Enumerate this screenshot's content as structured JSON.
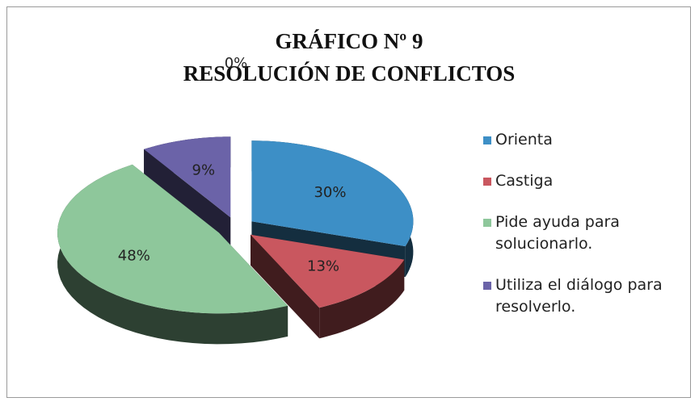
{
  "chart_data": {
    "type": "pie3d",
    "title": [
      "GRÁFICO Nº 9",
      "RESOLUCIÓN DE CONFLICTOS"
    ],
    "categories": [
      "Orienta",
      "Castiga",
      "Pide ayuda para solucionarlo.",
      "Utiliza el diálogo para resolverlo.",
      null
    ],
    "values": [
      30,
      13,
      48,
      9,
      0
    ],
    "value_labels": [
      "30%",
      "13%",
      "48%",
      "9%",
      "0%"
    ],
    "colors": [
      "#3d8fc6",
      "#c9575f",
      "#8ec79b",
      "#6b63a8"
    ],
    "legend": "right"
  }
}
